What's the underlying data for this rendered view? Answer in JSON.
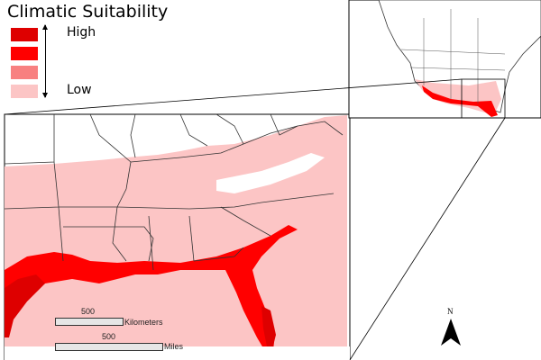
{
  "legend": {
    "title": "Climatic Suitability",
    "high_label": "High",
    "low_label": "Low",
    "classes": [
      {
        "level": "high",
        "color": "#de0000"
      },
      {
        "level": "medium-high",
        "color": "#ff0000"
      },
      {
        "level": "medium-low",
        "color": "#f88080"
      },
      {
        "level": "low",
        "color": "#fcc5c5"
      }
    ]
  },
  "scale_bars": {
    "km_value": "500",
    "km_unit": "Kilometers",
    "mi_value": "500",
    "mi_unit": "Miles"
  },
  "north_arrow": {
    "label": "N"
  }
}
